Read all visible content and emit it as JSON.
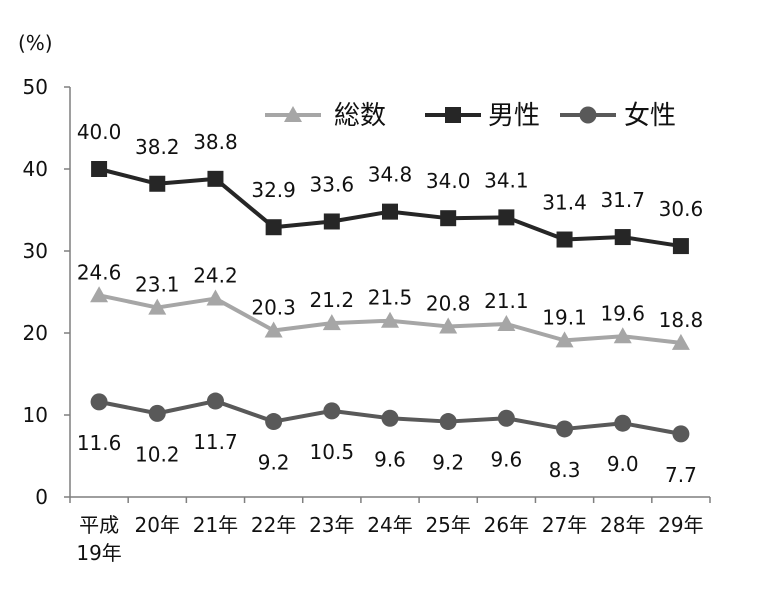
{
  "chart_data": {
    "type": "line",
    "title": "",
    "xlabel": "",
    "ylabel": "(%)",
    "ylim": [
      0,
      50
    ],
    "yticks": [
      "0",
      "10",
      "20",
      "30",
      "40",
      "50"
    ],
    "grid": false,
    "legend_position": "top-right",
    "categories": [
      "平成19年",
      "20年",
      "21年",
      "22年",
      "23年",
      "24年",
      "25年",
      "26年",
      "27年",
      "28年",
      "29年"
    ],
    "category_lines": [
      [
        "平成",
        "19年"
      ],
      [
        "20年"
      ],
      [
        "21年"
      ],
      [
        "22年"
      ],
      [
        "23年"
      ],
      [
        "24年"
      ],
      [
        "25年"
      ],
      [
        "26年"
      ],
      [
        "27年"
      ],
      [
        "28年"
      ],
      [
        "29年"
      ]
    ],
    "series": [
      {
        "name": "総数",
        "marker": "triangle",
        "color": "#a6a6a6",
        "values": [
          24.6,
          23.1,
          24.2,
          20.3,
          21.2,
          21.5,
          20.8,
          21.1,
          19.1,
          19.6,
          18.8
        ],
        "labels": [
          "24.6",
          "23.1",
          "24.2",
          "20.3",
          "21.2",
          "21.5",
          "20.8",
          "21.1",
          "19.1",
          "19.6",
          "18.8"
        ]
      },
      {
        "name": "男性",
        "marker": "square",
        "color": "#262626",
        "values": [
          40.0,
          38.2,
          38.8,
          32.9,
          33.6,
          34.8,
          34.0,
          34.1,
          31.4,
          31.7,
          30.6
        ],
        "labels": [
          "40.0",
          "38.2",
          "38.8",
          "32.9",
          "33.6",
          "34.8",
          "34.0",
          "34.1",
          "31.4",
          "31.7",
          "30.6"
        ]
      },
      {
        "name": "女性",
        "marker": "circle",
        "color": "#595959",
        "values": [
          11.6,
          10.2,
          11.7,
          9.2,
          10.5,
          9.6,
          9.2,
          9.6,
          8.3,
          9.0,
          7.7
        ],
        "labels": [
          "11.6",
          "10.2",
          "11.7",
          "9.2",
          "10.5",
          "9.6",
          "9.2",
          "9.6",
          "8.3",
          "9.0",
          "7.7"
        ]
      }
    ]
  }
}
